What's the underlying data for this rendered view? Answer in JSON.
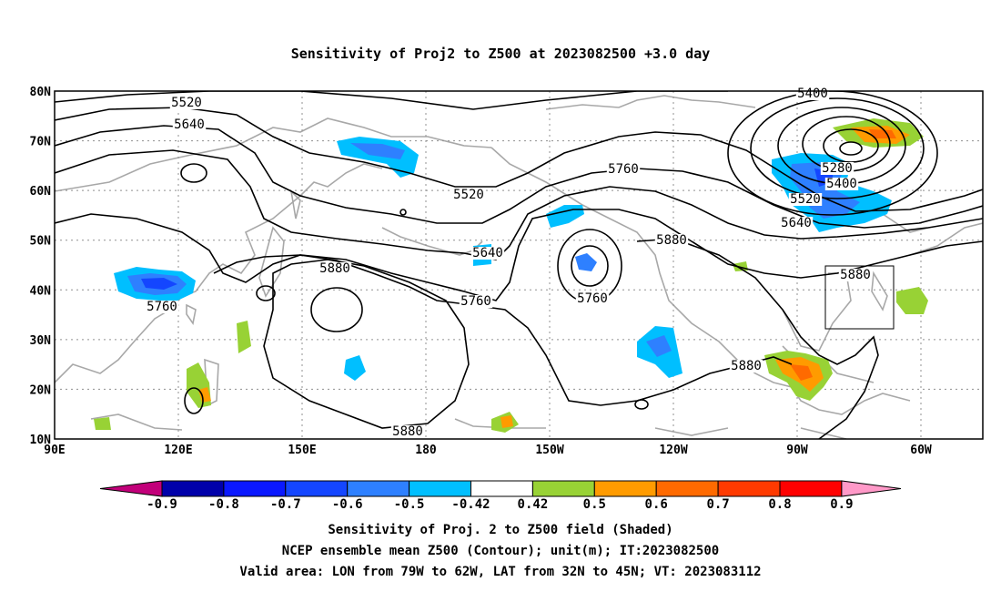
{
  "title": "Sensitivity of Proj2 to Z500 at 2023082500 +3.0 day",
  "lat_labels": [
    "80N",
    "70N",
    "60N",
    "50N",
    "40N",
    "30N",
    "20N",
    "10N"
  ],
  "lon_labels": [
    "90E",
    "120E",
    "150E",
    "180",
    "150W",
    "120W",
    "90W",
    "60W"
  ],
  "contour_labels": [
    "5400",
    "5520",
    "5640",
    "5760",
    "5520",
    "5640",
    "5760",
    "5760",
    "5880",
    "5880",
    "5880",
    "5880",
    "5280",
    "5400",
    "5520",
    "5640",
    "5760",
    "5880"
  ],
  "colorbar": {
    "labels": [
      "-0.9",
      "-0.8",
      "-0.7",
      "-0.6",
      "-0.5",
      "-0.42",
      "0.42",
      "0.5",
      "0.6",
      "0.7",
      "0.8",
      "0.9"
    ],
    "colors": [
      "#c2007a",
      "#0000aa",
      "#0a18ff",
      "#1446ff",
      "#2e80ff",
      "#00bfff",
      "#ffffff",
      "#98d235",
      "#ff9b00",
      "#ff6a00",
      "#ff3a00",
      "#ff0000",
      "#ff99c8"
    ]
  },
  "captions": {
    "line1": "Sensitivity of Proj. 2 to Z500 field (Shaded)",
    "line2": "NCEP ensemble mean Z500 (Contour); unit(m); IT:2023082500",
    "line3": "Valid area: LON from 79W to 62W, LAT from 32N to 45N; VT: 2023083112"
  },
  "valid_area": {
    "lon_west": -79,
    "lon_east": -62,
    "lat_south": 32,
    "lat_north": 45
  },
  "colors": {
    "coast": "#a8a8a8",
    "grid": "#909090",
    "contour": "#000000"
  }
}
